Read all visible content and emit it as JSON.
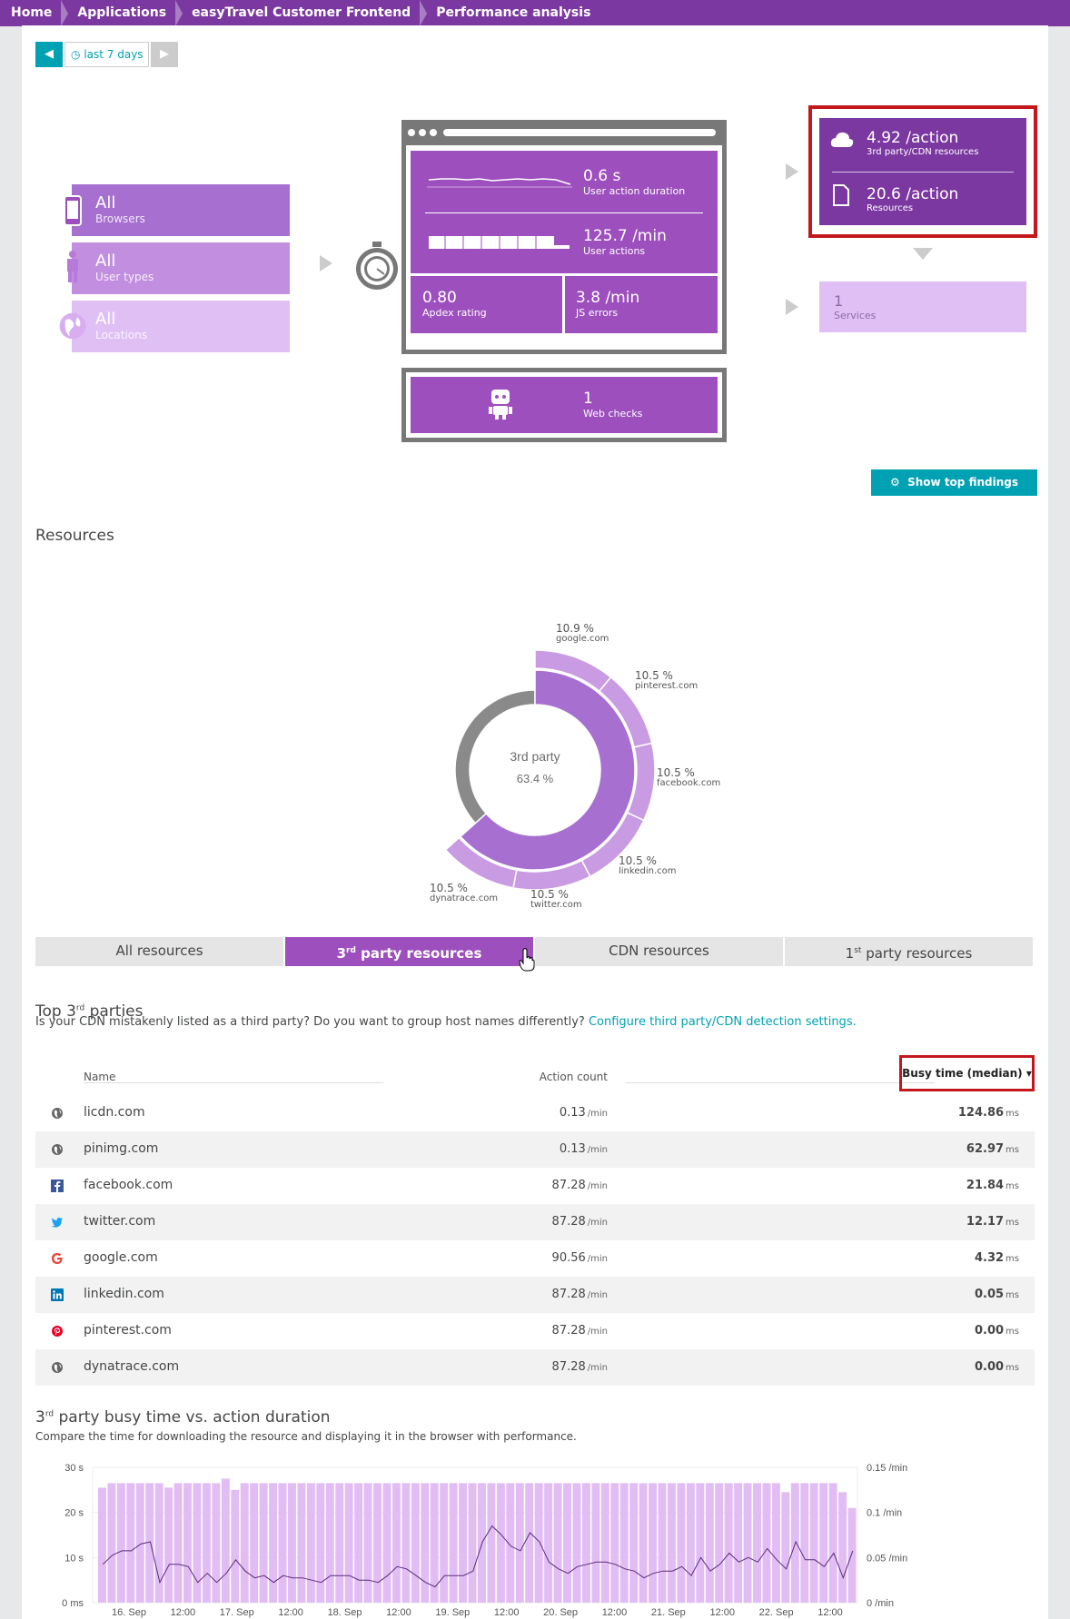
{
  "breadcrumb": [
    "Home",
    "Applications",
    "easyTravel Customer Frontend",
    "Performance analysis"
  ],
  "timeframe": {
    "label": "last 7 days"
  },
  "filters": [
    {
      "value": "All",
      "label": "Browsers"
    },
    {
      "value": "All",
      "label": "User types"
    },
    {
      "value": "All",
      "label": "Locations"
    }
  ],
  "metrics": {
    "duration": {
      "value": "0.6 s",
      "label": "User action duration"
    },
    "actions": {
      "value": "125.7 /min",
      "label": "User actions"
    },
    "apdex": {
      "value": "0.80",
      "label": "Apdex rating"
    },
    "js_errors": {
      "value": "3.8 /min",
      "label": "JS errors"
    },
    "web_checks": {
      "value": "1",
      "label": "Web checks"
    },
    "third_party": {
      "value": "4.92 /action",
      "label": "3rd party/CDN resources"
    },
    "resources": {
      "value": "20.6 /action",
      "label": "Resources"
    },
    "services": {
      "value": "1",
      "label": "Services"
    }
  },
  "show_findings": "Show top findings",
  "resources_title": "Resources",
  "donut": {
    "center_label": "3rd party",
    "center_value": "63.4 %",
    "slices": [
      {
        "pct": "10.9 %",
        "host": "google.com"
      },
      {
        "pct": "10.5 %",
        "host": "pinterest.com"
      },
      {
        "pct": "10.5 %",
        "host": "facebook.com"
      },
      {
        "pct": "10.5 %",
        "host": "linkedin.com"
      },
      {
        "pct": "10.5 %",
        "host": "twitter.com"
      },
      {
        "pct": "10.5 %",
        "host": "dynatrace.com"
      }
    ]
  },
  "tabs": [
    {
      "pre": "All resources",
      "sup": "",
      "post": ""
    },
    {
      "pre": "3",
      "sup": "rd",
      "post": " party resources"
    },
    {
      "pre": "CDN resources",
      "sup": "",
      "post": ""
    },
    {
      "pre": "1",
      "sup": "st",
      "post": " party resources"
    }
  ],
  "top3": {
    "title_pre": "Top 3",
    "title_sup": "rd",
    "title_post": " parties",
    "question": "Is your CDN mistakenly listed as a third party? Do you want to group host names differently? ",
    "link": "Configure third party/CDN detection settings."
  },
  "table": {
    "headers": {
      "name": "Name",
      "count": "Action count",
      "busy": "Busy time (median)"
    },
    "rows": [
      {
        "icon": "globe-icon",
        "name": "licdn.com",
        "count": "0.13",
        "count_unit": "/min",
        "busy": "124.86",
        "busy_unit": "ms"
      },
      {
        "icon": "globe-icon",
        "name": "pinimg.com",
        "count": "0.13",
        "count_unit": "/min",
        "busy": "62.97",
        "busy_unit": "ms"
      },
      {
        "icon": "facebook-icon",
        "name": "facebook.com",
        "count": "87.28",
        "count_unit": "/min",
        "busy": "21.84",
        "busy_unit": "ms"
      },
      {
        "icon": "twitter-icon",
        "name": "twitter.com",
        "count": "87.28",
        "count_unit": "/min",
        "busy": "12.17",
        "busy_unit": "ms"
      },
      {
        "icon": "google-icon",
        "name": "google.com",
        "count": "90.56",
        "count_unit": "/min",
        "busy": "4.32",
        "busy_unit": "ms"
      },
      {
        "icon": "linkedin-icon",
        "name": "linkedin.com",
        "count": "87.28",
        "count_unit": "/min",
        "busy": "0.05",
        "busy_unit": "ms"
      },
      {
        "icon": "pinterest-icon",
        "name": "pinterest.com",
        "count": "87.28",
        "count_unit": "/min",
        "busy": "0.00",
        "busy_unit": "ms"
      },
      {
        "icon": "globe-icon",
        "name": "dynatrace.com",
        "count": "87.28",
        "count_unit": "/min",
        "busy": "0.00",
        "busy_unit": "ms"
      }
    ]
  },
  "busy_section": {
    "title_pre": "3",
    "title_sup": "rd",
    "title_post": " party busy time vs. action duration",
    "subtitle": "Compare the time for downloading the resource and displaying it in the browser with performance."
  },
  "chart_data": {
    "type": "bar",
    "y_left_ticks": [
      "30 s",
      "20 s",
      "10 s",
      "0 ms"
    ],
    "y_right_ticks": [
      "0.15 /min",
      "0.1 /min",
      "0.05 /min",
      "0 /min"
    ],
    "x_ticks": [
      "16. Sep",
      "12:00",
      "17. Sep",
      "12:00",
      "18. Sep",
      "12:00",
      "19. Sep",
      "12:00",
      "20. Sep",
      "12:00",
      "21. Sep",
      "12:00",
      "22. Sep",
      "12:00"
    ],
    "ylim": [
      0,
      30
    ],
    "bars": [
      25.5,
      26.5,
      26.5,
      26.5,
      26.5,
      26.5,
      26.5,
      25.5,
      26.5,
      26.5,
      26.5,
      26.5,
      26.5,
      27.5,
      25,
      26.5,
      26.5,
      26.5,
      26.5,
      26.5,
      26.5,
      26.5,
      26.5,
      26.5,
      26.5,
      26.5,
      26.5,
      26.5,
      26.5,
      26.5,
      26.5,
      26.5,
      26.5,
      26.5,
      26.5,
      26.5,
      26.5,
      26.5,
      26.5,
      26.5,
      26.5,
      26.5,
      26.5,
      26.5,
      26.5,
      26.5,
      26.5,
      26.5,
      26.5,
      26.5,
      26.5,
      26.5,
      26.5,
      26.5,
      26.5,
      26.5,
      26.5,
      26.5,
      26.5,
      26.5,
      26.5,
      26.5,
      26.5,
      26.5,
      26.5,
      26.5,
      26.5,
      26.5,
      26.5,
      26.5,
      26.5,
      26.5,
      24.5,
      26.5,
      26.5,
      26.5,
      26.5,
      26.5,
      24.5,
      21
    ],
    "line": [
      8.5,
      10.5,
      11.5,
      11.5,
      13,
      13.5,
      4.5,
      8.5,
      8.5,
      8,
      4.5,
      6.5,
      4.5,
      6.5,
      9.5,
      7,
      5.5,
      6,
      4.5,
      6,
      5.5,
      5.5,
      5,
      4.5,
      6,
      6,
      6,
      5,
      5,
      4.5,
      6,
      8,
      7.5,
      6,
      4.5,
      3.5,
      6,
      6,
      6,
      7,
      13.5,
      17,
      15,
      12.5,
      11.5,
      15.5,
      13.5,
      9,
      7.5,
      6.5,
      8,
      8.5,
      9,
      9,
      8.5,
      7.5,
      7,
      5.5,
      6.5,
      7,
      7,
      8,
      6,
      10,
      7,
      8.5,
      11,
      9,
      10,
      9,
      12,
      9.5,
      7.5,
      13.5,
      9.5,
      9.5,
      8,
      11,
      5.5,
      11.5
    ]
  },
  "colors": {
    "brand": "#7c38a1",
    "accent": "#00a1b2",
    "highlight": "#c4171c"
  }
}
